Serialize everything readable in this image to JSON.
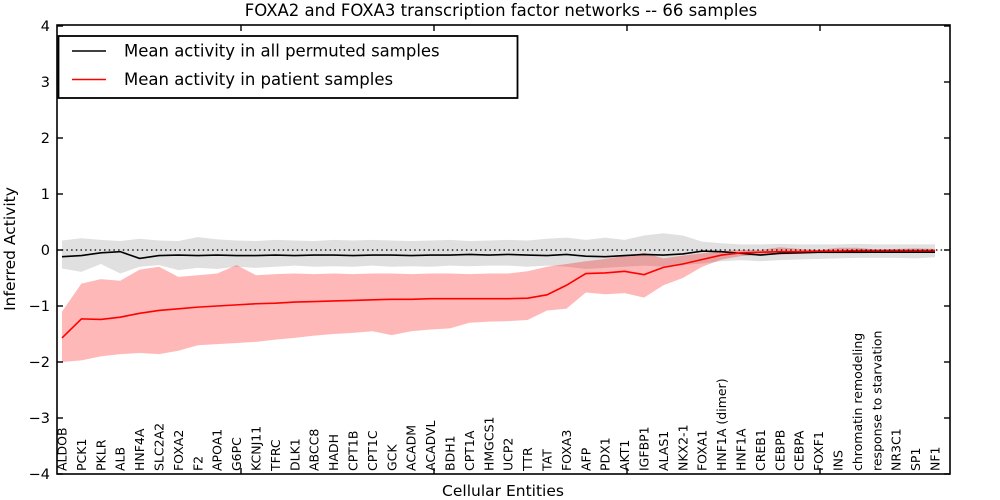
{
  "chart_data": {
    "type": "line",
    "title": "FOXA2 and FOXA3 transcription factor networks -- 66 samples",
    "xlabel": "Cellular Entities",
    "ylabel": "Inferred Activity",
    "ylim": [
      -4,
      4
    ],
    "yticks": [
      -4,
      -3,
      -2,
      -1,
      0,
      1,
      2,
      3,
      4
    ],
    "grid": false,
    "zero_line": {
      "value": 0,
      "style": "dotted",
      "color": "#000000"
    },
    "legend_position": "upper left",
    "categories": [
      "ALDOB",
      "PCK1",
      "PKLR",
      "ALB",
      "HNF4A",
      "SLC2A2",
      "FOXA2",
      "F2",
      "APOA1",
      "G6PC",
      "KCNJ11",
      "TFRC",
      "DLK1",
      "ABCC8",
      "HADH",
      "CPT1B",
      "CPT1C",
      "GCK",
      "ACADM",
      "ACADVL",
      "BDH1",
      "CPT1A",
      "HMGCS1",
      "UCP2",
      "TTR",
      "TAT",
      "FOXA3",
      "AFP",
      "PDX1",
      "AKT1",
      "IGFBP1",
      "ALAS1",
      "NKX2-1",
      "FOXA1",
      "HNF1A (dimer)",
      "HNF1A",
      "CREB1",
      "CEBPB",
      "CEBPA",
      "FOXF1",
      "INS",
      "chromatin remodeling",
      "response to starvation",
      "NR3C1",
      "SP1",
      "NF1"
    ],
    "series": [
      {
        "key": "permuted",
        "name": "Mean activity in all permuted samples",
        "color": "#000000",
        "values": [
          -0.12,
          -0.1,
          -0.05,
          -0.03,
          -0.15,
          -0.1,
          -0.09,
          -0.1,
          -0.09,
          -0.1,
          -0.1,
          -0.09,
          -0.1,
          -0.09,
          -0.09,
          -0.1,
          -0.09,
          -0.09,
          -0.1,
          -0.09,
          -0.09,
          -0.08,
          -0.09,
          -0.08,
          -0.09,
          -0.1,
          -0.08,
          -0.11,
          -0.12,
          -0.1,
          -0.08,
          -0.09,
          -0.07,
          -0.02,
          -0.03,
          -0.06,
          -0.09,
          -0.06,
          -0.05,
          -0.04,
          -0.04,
          -0.04,
          -0.04,
          -0.04,
          -0.04,
          -0.04
        ]
      },
      {
        "key": "patient",
        "name": "Mean activity in patient samples",
        "color": "#ff0000",
        "values": [
          -1.57,
          -1.23,
          -1.24,
          -1.2,
          -1.13,
          -1.08,
          -1.05,
          -1.02,
          -1.0,
          -0.98,
          -0.96,
          -0.95,
          -0.93,
          -0.92,
          -0.91,
          -0.9,
          -0.89,
          -0.88,
          -0.88,
          -0.87,
          -0.87,
          -0.87,
          -0.87,
          -0.87,
          -0.86,
          -0.8,
          -0.63,
          -0.42,
          -0.41,
          -0.38,
          -0.44,
          -0.31,
          -0.25,
          -0.17,
          -0.09,
          -0.05,
          -0.04,
          -0.03,
          -0.03,
          -0.02,
          -0.02,
          -0.01,
          -0.01,
          -0.01,
          -0.01,
          -0.01
        ]
      }
    ],
    "bands": [
      {
        "key": "permuted",
        "color": "rgba(0,0,0,0.12)",
        "upper": [
          0.17,
          0.21,
          0.18,
          0.16,
          0.2,
          0.17,
          0.16,
          0.23,
          0.19,
          0.17,
          0.16,
          0.18,
          0.17,
          0.16,
          0.18,
          0.17,
          0.18,
          0.17,
          0.16,
          0.17,
          0.18,
          0.16,
          0.17,
          0.18,
          0.17,
          0.2,
          0.22,
          0.18,
          0.22,
          0.18,
          0.26,
          0.3,
          0.26,
          0.15,
          0.12,
          0.1,
          0.1,
          0.11,
          0.1,
          0.1,
          0.1,
          0.11,
          0.1,
          0.1,
          0.1,
          0.1
        ],
        "lower": [
          -0.33,
          -0.39,
          -0.25,
          -0.42,
          -0.3,
          -0.27,
          -0.36,
          -0.32,
          -0.34,
          -0.3,
          -0.32,
          -0.3,
          -0.28,
          -0.3,
          -0.29,
          -0.3,
          -0.28,
          -0.3,
          -0.29,
          -0.3,
          -0.28,
          -0.29,
          -0.28,
          -0.28,
          -0.3,
          -0.28,
          -0.3,
          -0.34,
          -0.32,
          -0.3,
          -0.28,
          -0.3,
          -0.27,
          -0.24,
          -0.2,
          -0.18,
          -0.2,
          -0.18,
          -0.17,
          -0.16,
          -0.15,
          -0.14,
          -0.14,
          -0.14,
          -0.15,
          -0.13
        ]
      },
      {
        "key": "patient",
        "color": "rgba(255,0,0,0.28)",
        "upper": [
          -1.1,
          -0.6,
          -0.52,
          -0.55,
          -0.35,
          -0.3,
          -0.48,
          -0.45,
          -0.42,
          -0.27,
          -0.45,
          -0.43,
          -0.42,
          -0.43,
          -0.42,
          -0.43,
          -0.42,
          -0.42,
          -0.43,
          -0.42,
          -0.42,
          -0.43,
          -0.42,
          -0.42,
          -0.38,
          -0.3,
          -0.25,
          -0.2,
          -0.16,
          -0.1,
          -0.05,
          -0.15,
          -0.1,
          -0.06,
          -0.02,
          0.0,
          0.0,
          0.05,
          0.02,
          0.0,
          0.04,
          0.04,
          0.01,
          0.02,
          0.03,
          0.02
        ],
        "lower": [
          -2.0,
          -1.97,
          -1.9,
          -1.86,
          -1.84,
          -1.86,
          -1.8,
          -1.7,
          -1.68,
          -1.66,
          -1.64,
          -1.6,
          -1.57,
          -1.53,
          -1.5,
          -1.48,
          -1.45,
          -1.52,
          -1.45,
          -1.42,
          -1.4,
          -1.3,
          -1.28,
          -1.27,
          -1.25,
          -1.08,
          -1.05,
          -0.76,
          -0.79,
          -0.77,
          -0.85,
          -0.63,
          -0.5,
          -0.3,
          -0.17,
          -0.11,
          -0.09,
          -0.08,
          -0.07,
          -0.06,
          -0.06,
          -0.06,
          -0.05,
          -0.05,
          -0.05,
          -0.05
        ]
      }
    ]
  }
}
